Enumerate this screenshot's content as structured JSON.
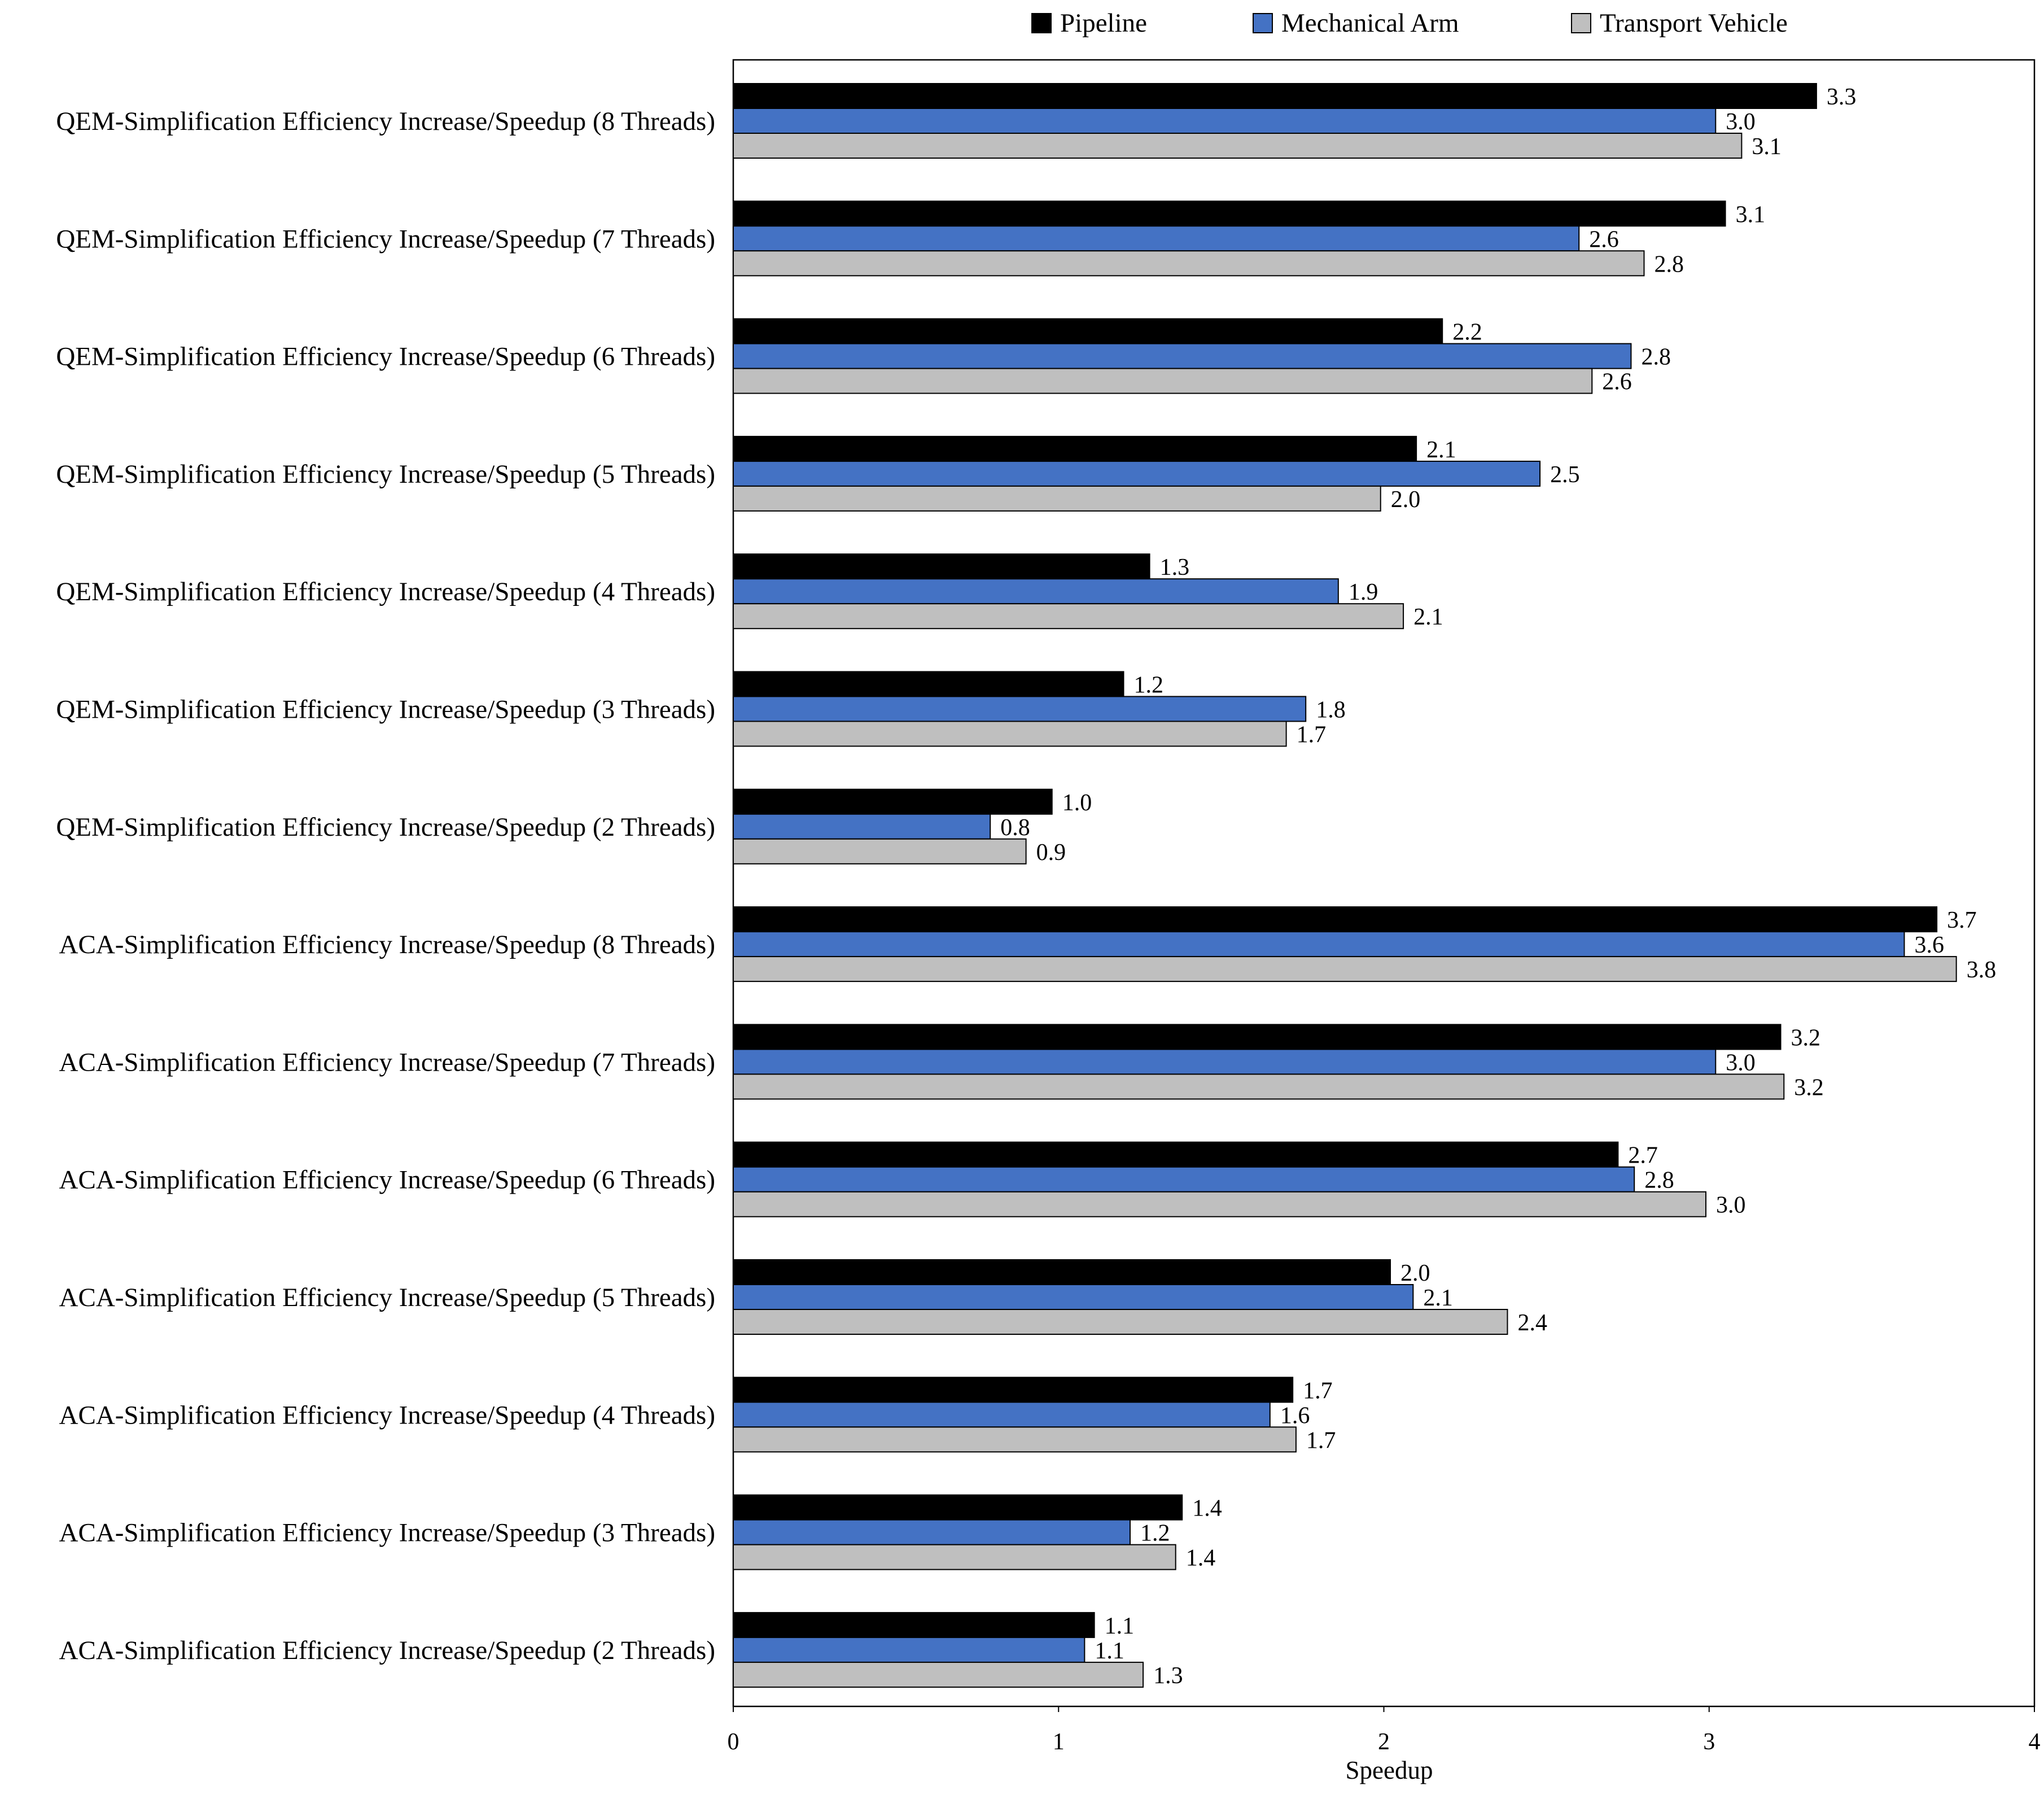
{
  "chart_data": {
    "type": "bar",
    "orientation": "horizontal",
    "title": "",
    "xlabel": "Speedup",
    "ylabel": "",
    "xlim": [
      0,
      4
    ],
    "xticks": [
      "0",
      "1",
      "2",
      "3",
      "4"
    ],
    "grid": false,
    "legend_position": "top",
    "categories": [
      "QEM-Simplification Efficiency Increase/Speedup (8 Threads)",
      "QEM-Simplification Efficiency Increase/Speedup (7 Threads)",
      "QEM-Simplification Efficiency Increase/Speedup (6 Threads)",
      "QEM-Simplification Efficiency Increase/Speedup (5 Threads)",
      "QEM-Simplification Efficiency Increase/Speedup (4 Threads)",
      "QEM-Simplification Efficiency Increase/Speedup (3 Threads)",
      "QEM-Simplification Efficiency Increase/Speedup (2 Threads)",
      "ACA-Simplification Efficiency Increase/Speedup (8 Threads)",
      "ACA-Simplification Efficiency Increase/Speedup (7 Threads)",
      "ACA-Simplification Efficiency Increase/Speedup (6 Threads)",
      "ACA-Simplification Efficiency Increase/Speedup (5 Threads)",
      "ACA-Simplification Efficiency Increase/Speedup (4 Threads)",
      "ACA-Simplification Efficiency Increase/Speedup (3 Threads)",
      "ACA-Simplification Efficiency Increase/Speedup (2 Threads)"
    ],
    "series": [
      {
        "name": "Pipeline",
        "color": "#000000",
        "values": [
          3.33,
          3.05,
          2.18,
          2.1,
          1.28,
          1.2,
          0.98,
          3.7,
          3.22,
          2.72,
          2.02,
          1.72,
          1.38,
          1.11
        ],
        "labels": [
          "3.3",
          "3.1",
          "2.2",
          "2.1",
          "1.3",
          "1.2",
          "1.0",
          "3.7",
          "3.2",
          "2.7",
          "2.0",
          "1.7",
          "1.4",
          "1.1"
        ]
      },
      {
        "name": "Mechanical Arm",
        "color": "#4472c4",
        "values": [
          3.02,
          2.6,
          2.76,
          2.48,
          1.86,
          1.76,
          0.79,
          3.6,
          3.02,
          2.77,
          2.09,
          1.65,
          1.22,
          1.08
        ],
        "labels": [
          "3.0",
          "2.6",
          "2.8",
          "2.5",
          "1.9",
          "1.8",
          "0.8",
          "3.6",
          "3.0",
          "2.8",
          "2.1",
          "1.6",
          "1.2",
          "1.1"
        ]
      },
      {
        "name": "Transport Vehicle",
        "color": "#bfbfbf",
        "values": [
          3.1,
          2.8,
          2.64,
          1.99,
          2.06,
          1.7,
          0.9,
          3.76,
          3.23,
          2.99,
          2.38,
          1.73,
          1.36,
          1.26
        ],
        "labels": [
          "3.1",
          "2.8",
          "2.6",
          "2.0",
          "2.1",
          "1.7",
          "0.9",
          "3.8",
          "3.2",
          "3.0",
          "2.4",
          "1.7",
          "1.4",
          "1.3"
        ]
      }
    ]
  }
}
